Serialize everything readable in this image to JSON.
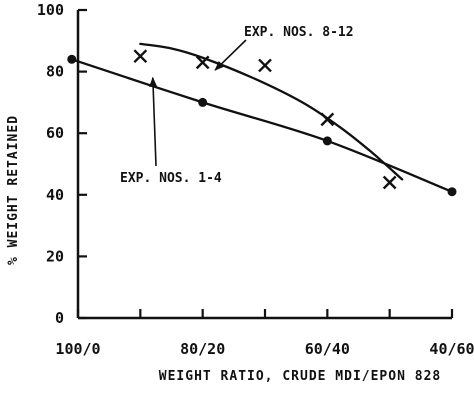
{
  "chart_data": {
    "type": "scatter",
    "xlabel": "WEIGHT RATIO, CRUDE MDI/EPON 828",
    "ylabel": "% WEIGHT RETAINED",
    "ylim": [
      0,
      100
    ],
    "xlim": [
      100,
      40
    ],
    "x_ticks": [
      100,
      90,
      80,
      70,
      60,
      50,
      40
    ],
    "x_tick_labels": [
      {
        "x": 100,
        "label": "100/0"
      },
      {
        "x": 80,
        "label": "80/20"
      },
      {
        "x": 60,
        "label": "60/40"
      },
      {
        "x": 40,
        "label": "40/60"
      }
    ],
    "y_ticks": [
      0,
      20,
      40,
      60,
      80,
      100
    ],
    "y_tick_labels": [
      "0",
      "20",
      "40",
      "60",
      "80",
      "100"
    ],
    "grid": false,
    "colors": {
      "ink": "#111111"
    },
    "series": [
      {
        "marker": "dot",
        "points": [
          {
            "x": 101,
            "y": 84
          },
          {
            "x": 80,
            "y": 70
          },
          {
            "x": 60,
            "y": 57.5
          },
          {
            "x": 40,
            "y": 41
          }
        ],
        "curve": [
          {
            "x": 101,
            "y": 84
          },
          {
            "x": 80,
            "y": 70
          },
          {
            "x": 60,
            "y": 57.5
          },
          {
            "x": 40,
            "y": 41
          }
        ]
      },
      {
        "marker": "x",
        "points": [
          {
            "x": 90,
            "y": 85
          },
          {
            "x": 80,
            "y": 83
          },
          {
            "x": 70,
            "y": 82
          },
          {
            "x": 60,
            "y": 64.5
          },
          {
            "x": 50,
            "y": 44
          }
        ],
        "curve": [
          {
            "x": 90,
            "y": 89
          },
          {
            "x": 85,
            "y": 87.5
          },
          {
            "x": 80,
            "y": 84.5
          },
          {
            "x": 72,
            "y": 78
          },
          {
            "x": 64,
            "y": 70
          },
          {
            "x": 58,
            "y": 62
          },
          {
            "x": 53,
            "y": 54
          },
          {
            "x": 48,
            "y": 45
          }
        ]
      }
    ],
    "annotations": [
      {
        "text": "EXP. NOS. 8-12",
        "series_index": 1,
        "arrow_to": {
          "x": 78,
          "y": 80.5
        }
      },
      {
        "text": "EXP. NOS. 1-4",
        "series_index": 0,
        "arrow_to": {
          "x": 88,
          "y": 78
        }
      }
    ]
  }
}
